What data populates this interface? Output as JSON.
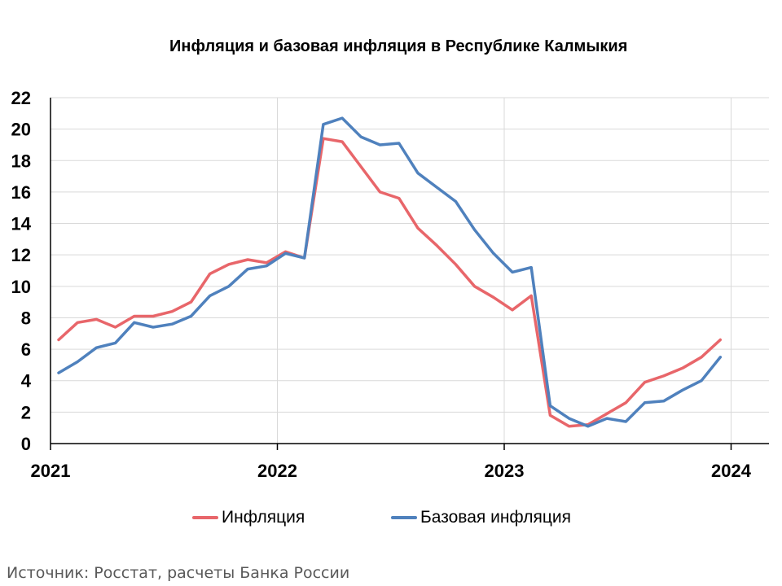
{
  "chart_data": {
    "type": "line",
    "title": "Инфляция и базовая инфляция в Республике Калмыкия",
    "xlabel": "",
    "ylabel": "",
    "ylim": [
      0,
      22
    ],
    "yticks": [
      0,
      2,
      4,
      6,
      8,
      10,
      12,
      14,
      16,
      18,
      20,
      22
    ],
    "xlim": [
      2021,
      2024
    ],
    "xticks": [
      "2021",
      "2022",
      "2023",
      "2024"
    ],
    "grid": true,
    "legend_position": "bottom",
    "x": [
      "янв 2021",
      "фев 2021",
      "мар 2021",
      "апр 2021",
      "май 2021",
      "июн 2021",
      "июл 2021",
      "авг 2021",
      "сен 2021",
      "окт 2021",
      "ноя 2021",
      "дек 2021",
      "янв 2022",
      "фев 2022",
      "мар 2022",
      "апр 2022",
      "май 2022",
      "июн 2022",
      "июл 2022",
      "авг 2022",
      "сен 2022",
      "окт 2022",
      "ноя 2022",
      "дек 2022",
      "янв 2023",
      "фев 2023",
      "мар 2023",
      "апр 2023",
      "май 2023",
      "июн 2023",
      "июл 2023",
      "авг 2023",
      "сен 2023",
      "окт 2023",
      "ноя 2023",
      "дек 2023"
    ],
    "series": [
      {
        "name": "Инфляция",
        "color": "#E8666A",
        "values": [
          6.6,
          7.7,
          7.9,
          7.4,
          8.1,
          8.1,
          8.4,
          9.0,
          10.8,
          11.4,
          11.7,
          11.5,
          12.2,
          11.8,
          19.4,
          19.2,
          17.6,
          16.0,
          15.6,
          13.7,
          12.6,
          11.4,
          10.0,
          9.3,
          8.5,
          9.4,
          1.8,
          1.1,
          1.2,
          1.9,
          2.6,
          3.9,
          4.3,
          4.8,
          5.5,
          6.6
        ]
      },
      {
        "name": "Базовая инфляция",
        "color": "#4F81BD",
        "values": [
          4.5,
          5.2,
          6.1,
          6.4,
          7.7,
          7.4,
          7.6,
          8.1,
          9.4,
          10.0,
          11.1,
          11.3,
          12.1,
          11.8,
          20.3,
          20.7,
          19.5,
          19.0,
          19.1,
          17.2,
          16.3,
          15.4,
          13.6,
          12.1,
          10.9,
          11.2,
          2.4,
          1.6,
          1.1,
          1.6,
          1.4,
          2.6,
          2.7,
          3.4,
          4.0,
          5.5
        ]
      }
    ]
  },
  "source_note": "Источник: Росстат, расчеты Банка России"
}
